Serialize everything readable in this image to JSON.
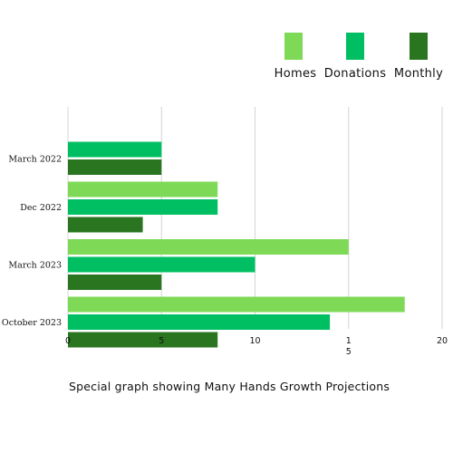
{
  "chart_data": {
    "type": "bar",
    "orientation": "horizontal",
    "categories": [
      "March 2022",
      "Dec 2022",
      "March 2023",
      "October 2023"
    ],
    "series": [
      {
        "name": "Homes",
        "color": "#7ed957",
        "values": [
          0,
          8,
          15,
          18
        ]
      },
      {
        "name": "Donations",
        "color": "#00bf63",
        "values": [
          5,
          8,
          10,
          14
        ]
      },
      {
        "name": "Monthly",
        "color": "#2a7520",
        "values": [
          5,
          4,
          5,
          8
        ]
      }
    ],
    "xlim": [
      0,
      20
    ],
    "x_ticks": [
      {
        "value": 0,
        "label": "0"
      },
      {
        "value": 5,
        "label": "5"
      },
      {
        "value": 10,
        "label": "10"
      },
      {
        "value": 15,
        "label": "1\n5"
      },
      {
        "value": 20,
        "label": "20"
      }
    ],
    "grid": true,
    "legend_position": "top-right",
    "caption": "Special graph showing Many Hands Growth Projections"
  }
}
